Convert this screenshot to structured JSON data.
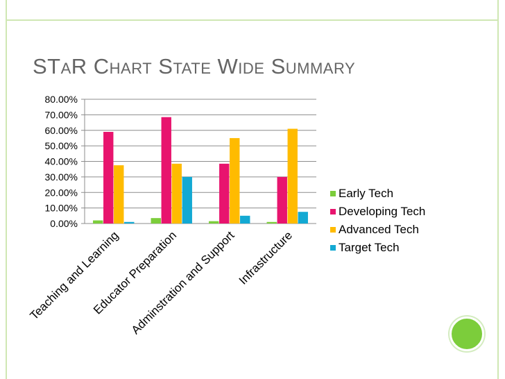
{
  "slide": {
    "title": "STaR Chart State Wide Summary"
  },
  "colors": {
    "frame": "#cfe7b3",
    "accent_dot": "#7ccd3b",
    "title": "#646464",
    "grid": "#8c8c8c"
  },
  "chart_data": {
    "type": "bar",
    "title": "",
    "xlabel": "",
    "ylabel": "",
    "ylim": [
      0,
      0.8
    ],
    "y_tick_labels": [
      "0.00%",
      "10.00%",
      "20.00%",
      "30.00%",
      "40.00%",
      "50.00%",
      "60.00%",
      "70.00%",
      "80.00%"
    ],
    "categories": [
      "Teaching and Learning",
      "Educator Preparation",
      "Adminstration and Support",
      "Infrastructure"
    ],
    "legend_position": "right",
    "grid": true,
    "series": [
      {
        "name": "Early Tech",
        "color": "#7ccd3b",
        "values": [
          0.02,
          0.035,
          0.015,
          0.01
        ]
      },
      {
        "name": "Developing Tech",
        "color": "#e8146e",
        "values": [
          0.59,
          0.685,
          0.385,
          0.3
        ]
      },
      {
        "name": "Advanced Tech",
        "color": "#ffbb00",
        "values": [
          0.375,
          0.385,
          0.55,
          0.61
        ]
      },
      {
        "name": "Target Tech",
        "color": "#13a9d3",
        "values": [
          0.01,
          0.3,
          0.05,
          0.075
        ]
      }
    ]
  }
}
